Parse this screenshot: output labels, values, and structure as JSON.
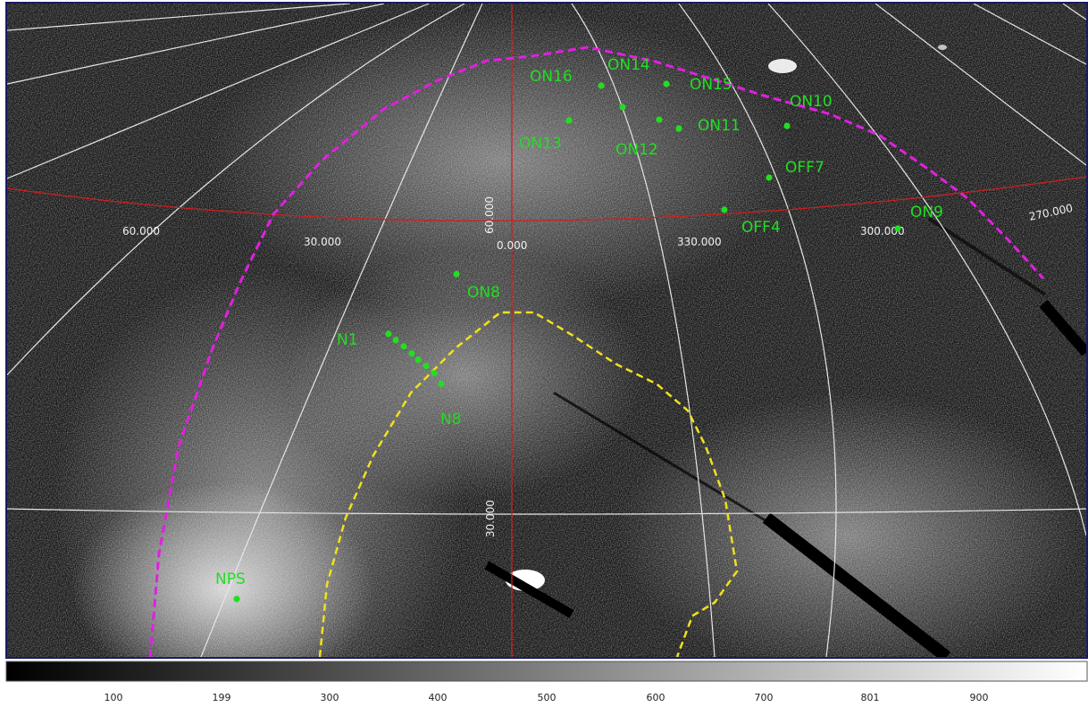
{
  "colors": {
    "background": "#1c1c1c",
    "grid_white": "#e6e6e6",
    "grid_red": "#d21e1e",
    "outer_region": "#e020e0",
    "inner_region": "#f0e020",
    "markers": "#22dd22",
    "frame": "#1a1a66"
  },
  "grid_labels": {
    "lon_60": "60.000",
    "lon_30": "30.000",
    "lon_0": "0.000",
    "lon_330": "330.000",
    "lon_300": "300.000",
    "lon_270": "270.000",
    "lat_60": "60.000",
    "lat_30": "30.000"
  },
  "sources": [
    {
      "name": "ON16"
    },
    {
      "name": "ON14"
    },
    {
      "name": "ON15"
    },
    {
      "name": "ON10"
    },
    {
      "name": "ON11"
    },
    {
      "name": "ON13"
    },
    {
      "name": "ON12"
    },
    {
      "name": "OFF7"
    },
    {
      "name": "ON9"
    },
    {
      "name": "OFF4"
    },
    {
      "name": "ON8"
    },
    {
      "name": "N1"
    },
    {
      "name": "N8"
    },
    {
      "name": "NPS"
    }
  ],
  "colorbar": {
    "ticks": [
      "100",
      "199",
      "300",
      "400",
      "500",
      "600",
      "700",
      "801",
      "900"
    ]
  }
}
